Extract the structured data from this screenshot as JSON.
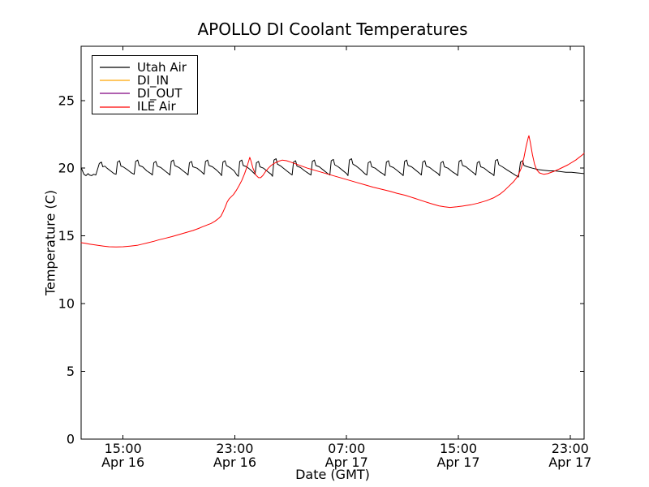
{
  "chart_data": {
    "type": "line",
    "title": "APOLLO DI Coolant Temperatures",
    "xlabel": "Date (GMT)",
    "ylabel": "Temperature (C)",
    "x_axis_origin": "Apr 16 12:00 GMT",
    "x_unit": "hours since Apr 16 12:00",
    "xlim": [
      0,
      36
    ],
    "ylim": [
      0,
      29
    ],
    "grid": false,
    "legend_position": "upper-left",
    "x_ticks": [
      {
        "hour": 3,
        "time": "15:00",
        "date": "Apr 16"
      },
      {
        "hour": 11,
        "time": "23:00",
        "date": "Apr 16"
      },
      {
        "hour": 19,
        "time": "07:00",
        "date": "Apr 17"
      },
      {
        "hour": 27,
        "time": "15:00",
        "date": "Apr 17"
      },
      {
        "hour": 35,
        "time": "23:00",
        "date": "Apr 17"
      }
    ],
    "y_ticks": [
      0,
      5,
      10,
      15,
      20,
      25
    ],
    "series": [
      {
        "name": "Utah Air",
        "color": "#000000",
        "points": [
          [
            0,
            20.05
          ],
          [
            0.1,
            19.8
          ],
          [
            0.2,
            19.55
          ],
          [
            0.35,
            19.45
          ],
          [
            0.5,
            19.6
          ],
          [
            0.6,
            19.5
          ],
          [
            0.75,
            19.45
          ],
          [
            0.9,
            19.55
          ],
          [
            1.05,
            19.5
          ],
          [
            1.3,
            20.35
          ],
          [
            1.45,
            20.45
          ],
          [
            1.55,
            20.1
          ],
          [
            1.7,
            20.15
          ],
          [
            1.85,
            20.0
          ],
          [
            2.1,
            19.8
          ],
          [
            2.35,
            19.6
          ],
          [
            2.5,
            19.55
          ],
          [
            2.6,
            20.45
          ],
          [
            2.75,
            20.55
          ],
          [
            2.85,
            20.15
          ],
          [
            3.0,
            20.1
          ],
          [
            3.3,
            19.9
          ],
          [
            3.6,
            19.65
          ],
          [
            3.8,
            19.55
          ],
          [
            3.9,
            20.5
          ],
          [
            4.05,
            20.6
          ],
          [
            4.15,
            20.2
          ],
          [
            4.4,
            20.1
          ],
          [
            4.7,
            19.8
          ],
          [
            5.0,
            19.6
          ],
          [
            5.1,
            19.5
          ],
          [
            5.2,
            20.4
          ],
          [
            5.35,
            20.5
          ],
          [
            5.45,
            20.15
          ],
          [
            5.7,
            20.05
          ],
          [
            6.0,
            19.8
          ],
          [
            6.25,
            19.6
          ],
          [
            6.35,
            19.5
          ],
          [
            6.45,
            20.5
          ],
          [
            6.6,
            20.6
          ],
          [
            6.7,
            20.2
          ],
          [
            7.0,
            20.05
          ],
          [
            7.3,
            19.8
          ],
          [
            7.55,
            19.6
          ],
          [
            7.65,
            19.5
          ],
          [
            7.75,
            20.4
          ],
          [
            7.9,
            20.5
          ],
          [
            8.0,
            20.1
          ],
          [
            8.3,
            20.0
          ],
          [
            8.6,
            19.75
          ],
          [
            8.8,
            19.55
          ],
          [
            8.9,
            20.5
          ],
          [
            9.05,
            20.6
          ],
          [
            9.15,
            20.2
          ],
          [
            9.4,
            20.1
          ],
          [
            9.7,
            19.85
          ],
          [
            9.95,
            19.6
          ],
          [
            10.05,
            19.45
          ],
          [
            10.15,
            20.45
          ],
          [
            10.3,
            20.55
          ],
          [
            10.4,
            20.2
          ],
          [
            10.65,
            20.05
          ],
          [
            10.95,
            19.8
          ],
          [
            11.15,
            19.5
          ],
          [
            11.25,
            19.4
          ],
          [
            11.35,
            20.5
          ],
          [
            11.5,
            20.6
          ],
          [
            11.6,
            20.2
          ],
          [
            11.85,
            20.1
          ],
          [
            12.1,
            19.9
          ],
          [
            12.35,
            19.65
          ],
          [
            12.45,
            19.55
          ],
          [
            12.55,
            20.4
          ],
          [
            12.7,
            20.5
          ],
          [
            12.8,
            20.1
          ],
          [
            13.05,
            20.0
          ],
          [
            13.35,
            19.75
          ],
          [
            13.6,
            19.55
          ],
          [
            13.7,
            19.4
          ],
          [
            13.8,
            20.6
          ],
          [
            13.95,
            20.7
          ],
          [
            14.05,
            20.3
          ],
          [
            14.3,
            20.15
          ],
          [
            14.6,
            19.9
          ],
          [
            14.9,
            19.65
          ],
          [
            15.1,
            19.5
          ],
          [
            15.2,
            20.45
          ],
          [
            15.35,
            20.55
          ],
          [
            15.45,
            20.15
          ],
          [
            15.7,
            20.05
          ],
          [
            16.0,
            19.8
          ],
          [
            16.3,
            19.6
          ],
          [
            16.45,
            19.5
          ],
          [
            16.55,
            20.5
          ],
          [
            16.7,
            20.6
          ],
          [
            16.8,
            20.2
          ],
          [
            17.05,
            20.1
          ],
          [
            17.35,
            19.85
          ],
          [
            17.65,
            19.6
          ],
          [
            17.8,
            19.5
          ],
          [
            17.9,
            20.55
          ],
          [
            18.05,
            20.65
          ],
          [
            18.15,
            20.25
          ],
          [
            18.4,
            20.1
          ],
          [
            18.7,
            19.85
          ],
          [
            19.0,
            19.6
          ],
          [
            19.1,
            19.45
          ],
          [
            19.2,
            20.6
          ],
          [
            19.35,
            20.7
          ],
          [
            19.45,
            20.3
          ],
          [
            19.7,
            20.15
          ],
          [
            20.0,
            19.9
          ],
          [
            20.3,
            19.6
          ],
          [
            20.45,
            19.5
          ],
          [
            20.55,
            20.4
          ],
          [
            20.7,
            20.5
          ],
          [
            20.8,
            20.1
          ],
          [
            21.05,
            20.0
          ],
          [
            21.35,
            19.75
          ],
          [
            21.65,
            19.55
          ],
          [
            21.75,
            19.45
          ],
          [
            21.85,
            20.45
          ],
          [
            22.0,
            20.55
          ],
          [
            22.1,
            20.15
          ],
          [
            22.35,
            20.05
          ],
          [
            22.65,
            19.8
          ],
          [
            22.95,
            19.55
          ],
          [
            23.05,
            19.45
          ],
          [
            23.15,
            20.5
          ],
          [
            23.3,
            20.6
          ],
          [
            23.4,
            20.2
          ],
          [
            23.65,
            20.1
          ],
          [
            23.95,
            19.85
          ],
          [
            24.25,
            19.6
          ],
          [
            24.35,
            19.5
          ],
          [
            24.45,
            20.45
          ],
          [
            24.6,
            20.55
          ],
          [
            24.7,
            20.15
          ],
          [
            24.95,
            20.05
          ],
          [
            25.25,
            19.8
          ],
          [
            25.55,
            19.6
          ],
          [
            25.65,
            19.45
          ],
          [
            25.75,
            20.4
          ],
          [
            25.9,
            20.5
          ],
          [
            26.0,
            20.1
          ],
          [
            26.25,
            20.0
          ],
          [
            26.55,
            19.75
          ],
          [
            26.85,
            19.55
          ],
          [
            26.95,
            19.45
          ],
          [
            27.05,
            20.5
          ],
          [
            27.2,
            20.6
          ],
          [
            27.3,
            20.2
          ],
          [
            27.55,
            20.1
          ],
          [
            27.85,
            19.85
          ],
          [
            28.15,
            19.6
          ],
          [
            28.25,
            19.5
          ],
          [
            28.35,
            20.4
          ],
          [
            28.5,
            20.5
          ],
          [
            28.6,
            20.1
          ],
          [
            28.85,
            20.0
          ],
          [
            29.15,
            19.75
          ],
          [
            29.45,
            19.55
          ],
          [
            29.55,
            19.45
          ],
          [
            29.65,
            20.55
          ],
          [
            29.8,
            20.65
          ],
          [
            29.9,
            20.25
          ],
          [
            30.15,
            20.1
          ],
          [
            30.45,
            19.9
          ],
          [
            30.75,
            19.7
          ],
          [
            31.05,
            19.5
          ],
          [
            31.3,
            19.35
          ],
          [
            31.45,
            20.45
          ],
          [
            31.6,
            20.55
          ],
          [
            31.7,
            20.2
          ],
          [
            31.95,
            20.1
          ],
          [
            32.3,
            20.0
          ],
          [
            32.7,
            19.9
          ],
          [
            33.1,
            19.85
          ],
          [
            33.5,
            19.8
          ],
          [
            33.9,
            19.8
          ],
          [
            34.3,
            19.75
          ],
          [
            34.7,
            19.7
          ],
          [
            35.1,
            19.7
          ],
          [
            35.5,
            19.65
          ],
          [
            36,
            19.6
          ]
        ]
      },
      {
        "name": "DI_IN",
        "color": "#ffa500",
        "points": []
      },
      {
        "name": "DI_OUT",
        "color": "#800080",
        "points": []
      },
      {
        "name": "ILE Air",
        "color": "#ff0000",
        "points": [
          [
            0,
            14.5
          ],
          [
            0.3,
            14.45
          ],
          [
            0.6,
            14.4
          ],
          [
            0.9,
            14.35
          ],
          [
            1.2,
            14.3
          ],
          [
            1.6,
            14.25
          ],
          [
            2,
            14.2
          ],
          [
            2.5,
            14.18
          ],
          [
            3,
            14.2
          ],
          [
            3.5,
            14.25
          ],
          [
            4,
            14.3
          ],
          [
            4.4,
            14.4
          ],
          [
            4.8,
            14.5
          ],
          [
            5.2,
            14.6
          ],
          [
            5.6,
            14.72
          ],
          [
            6,
            14.82
          ],
          [
            6.5,
            14.95
          ],
          [
            7,
            15.1
          ],
          [
            7.5,
            15.25
          ],
          [
            8,
            15.4
          ],
          [
            8.4,
            15.55
          ],
          [
            8.7,
            15.68
          ],
          [
            9,
            15.8
          ],
          [
            9.3,
            15.92
          ],
          [
            9.6,
            16.1
          ],
          [
            9.85,
            16.3
          ],
          [
            10,
            16.45
          ],
          [
            10.15,
            16.75
          ],
          [
            10.3,
            17.1
          ],
          [
            10.45,
            17.5
          ],
          [
            10.6,
            17.75
          ],
          [
            10.75,
            17.9
          ],
          [
            10.9,
            18.05
          ],
          [
            11.1,
            18.35
          ],
          [
            11.3,
            18.7
          ],
          [
            11.5,
            19.1
          ],
          [
            11.7,
            19.6
          ],
          [
            11.85,
            20.05
          ],
          [
            12,
            20.55
          ],
          [
            12.07,
            20.8
          ],
          [
            12.15,
            20.55
          ],
          [
            12.3,
            20.0
          ],
          [
            12.5,
            19.5
          ],
          [
            12.7,
            19.3
          ],
          [
            12.85,
            19.3
          ],
          [
            13,
            19.45
          ],
          [
            13.2,
            19.75
          ],
          [
            13.4,
            20.0
          ],
          [
            13.6,
            20.2
          ],
          [
            13.8,
            20.35
          ],
          [
            14.1,
            20.5
          ],
          [
            14.4,
            20.6
          ],
          [
            14.7,
            20.55
          ],
          [
            15,
            20.45
          ],
          [
            15.4,
            20.3
          ],
          [
            15.8,
            20.15
          ],
          [
            16.2,
            20.0
          ],
          [
            16.7,
            19.85
          ],
          [
            17.2,
            19.7
          ],
          [
            17.7,
            19.55
          ],
          [
            18.2,
            19.4
          ],
          [
            18.7,
            19.25
          ],
          [
            19.2,
            19.1
          ],
          [
            19.7,
            18.95
          ],
          [
            20.3,
            18.78
          ],
          [
            20.9,
            18.6
          ],
          [
            21.5,
            18.45
          ],
          [
            22.1,
            18.3
          ],
          [
            22.6,
            18.15
          ],
          [
            23.2,
            18.0
          ],
          [
            23.8,
            17.8
          ],
          [
            24.4,
            17.6
          ],
          [
            25,
            17.4
          ],
          [
            25.6,
            17.22
          ],
          [
            26,
            17.15
          ],
          [
            26.4,
            17.1
          ],
          [
            26.9,
            17.15
          ],
          [
            27.3,
            17.2
          ],
          [
            27.9,
            17.3
          ],
          [
            28.4,
            17.42
          ],
          [
            29,
            17.6
          ],
          [
            29.5,
            17.8
          ],
          [
            30,
            18.1
          ],
          [
            30.3,
            18.35
          ],
          [
            30.6,
            18.65
          ],
          [
            30.95,
            19.0
          ],
          [
            31.25,
            19.4
          ],
          [
            31.5,
            20.0
          ],
          [
            31.7,
            20.8
          ],
          [
            31.85,
            21.6
          ],
          [
            32,
            22.25
          ],
          [
            32.05,
            22.4
          ],
          [
            32.15,
            21.9
          ],
          [
            32.3,
            21.0
          ],
          [
            32.45,
            20.3
          ],
          [
            32.6,
            19.9
          ],
          [
            32.8,
            19.65
          ],
          [
            33.1,
            19.55
          ],
          [
            33.4,
            19.6
          ],
          [
            33.8,
            19.75
          ],
          [
            34.25,
            19.95
          ],
          [
            34.85,
            20.25
          ],
          [
            35.4,
            20.6
          ],
          [
            35.9,
            21.0
          ],
          [
            36,
            21.1
          ]
        ]
      }
    ]
  }
}
